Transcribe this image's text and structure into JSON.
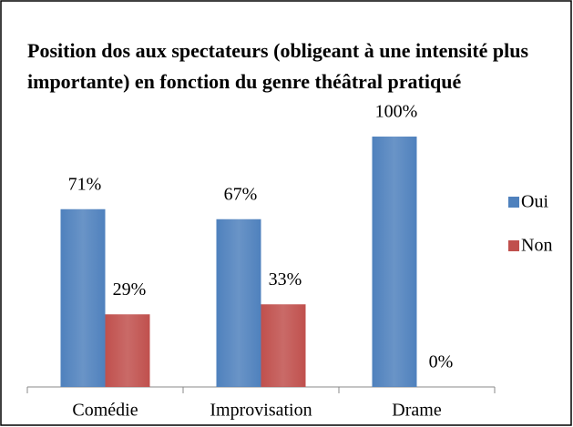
{
  "chart_data": {
    "type": "bar",
    "title": "Position dos aux spectateurs (obligeant à une intensité plus importante) en fonction du genre théâtral pratiqué",
    "categories": [
      "Comédie",
      "Improvisation",
      "Drame"
    ],
    "series": [
      {
        "name": "Oui",
        "color": "#4f81bd",
        "values": [
          71,
          67,
          100
        ],
        "value_labels": [
          "71%",
          "67%",
          "100%"
        ]
      },
      {
        "name": "Non",
        "color": "#c0504d",
        "values": [
          29,
          33,
          0
        ],
        "value_labels": [
          "29%",
          "33%",
          "0%"
        ]
      }
    ],
    "ylim": [
      0,
      100
    ],
    "legend": "right"
  }
}
